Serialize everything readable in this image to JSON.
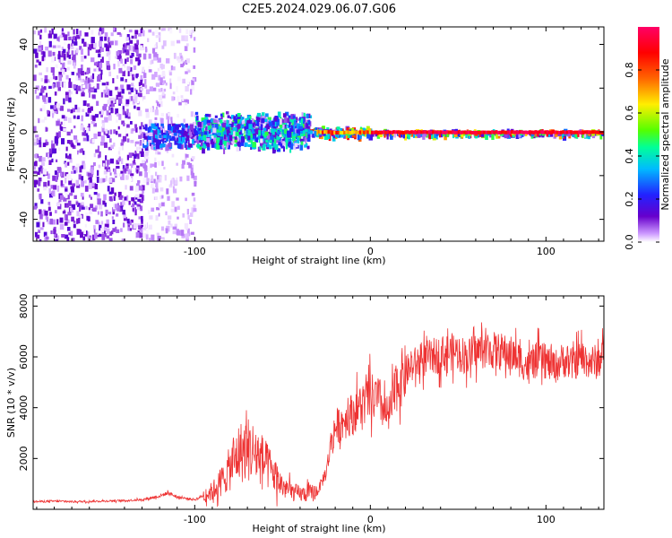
{
  "title": "C2E5.2024.029.06.07.G06",
  "chart_data": [
    {
      "type": "heatmap",
      "xlabel": "Height of straight line (km)",
      "ylabel": "Frequency (Hz)",
      "xlim": [
        -192,
        133
      ],
      "ylim": [
        -50,
        48
      ],
      "xticks": [
        -100,
        0,
        100
      ],
      "yticks": [
        -40,
        -20,
        0,
        20,
        40
      ],
      "colorbar": {
        "label": "Normalized spectral amplitude",
        "range": [
          0,
          1
        ],
        "ticks": [
          0.0,
          0.2,
          0.4,
          0.6,
          0.8
        ],
        "stops": [
          "#ffffff",
          "#cc99ff",
          "#6600cc",
          "#2222ff",
          "#00bbff",
          "#00ff99",
          "#55ff00",
          "#ffee00",
          "#ff6600",
          "#ff0000",
          "#ff0066"
        ]
      },
      "regions": [
        {
          "x0": -192,
          "x1": -130,
          "fmin": -50,
          "fmax": 48,
          "amp_max": 0.15
        },
        {
          "x0": -130,
          "x1": -100,
          "fmin": -50,
          "fmax": 48,
          "amp_max": 0.06
        },
        {
          "x0": -130,
          "x1": -100,
          "fmin": -6,
          "fmax": 4,
          "amp_max": 0.35
        },
        {
          "x0": -100,
          "x1": -35,
          "fmin": -8,
          "fmax": 10,
          "amp_max": 0.5
        },
        {
          "x0": -35,
          "x1": 0,
          "fmin": -2,
          "fmax": 3,
          "amp_max": 0.9
        },
        {
          "x0": 0,
          "x1": 133,
          "fmin": -1.5,
          "fmax": 1.5,
          "amp_max": 0.95
        }
      ]
    },
    {
      "type": "line",
      "xlabel": "Height of straight line (km)",
      "ylabel": "SNR (10 * v/v)",
      "xlim": [
        -192,
        133
      ],
      "ylim": [
        0,
        8400
      ],
      "xticks": [
        -100,
        0,
        100
      ],
      "yticks": [
        2000,
        4000,
        6000,
        8000
      ],
      "color": "#ee3333",
      "series": [
        {
          "x": [
            -192,
            -180,
            -170,
            -160,
            -150,
            -140,
            -130,
            -120,
            -115,
            -110,
            -100,
            -90,
            -85,
            -80,
            -75,
            -70,
            -65,
            -60,
            -55,
            -50,
            -45,
            -40,
            -35,
            -30,
            -25,
            -22,
            -20,
            -15,
            -10,
            -5,
            0,
            5,
            10,
            12,
            15,
            20,
            25,
            30,
            35,
            40,
            45,
            50,
            55,
            60,
            65,
            70,
            75,
            80,
            85,
            90,
            95,
            100,
            105,
            110,
            115,
            120,
            125,
            130,
            133
          ],
          "y": [
            300,
            320,
            300,
            310,
            330,
            340,
            380,
            520,
            650,
            480,
            380,
            700,
            1100,
            1600,
            2200,
            2400,
            2200,
            1800,
            1400,
            900,
            700,
            600,
            620,
            700,
            1500,
            2800,
            3200,
            3500,
            3800,
            4100,
            4400,
            4300,
            3600,
            4000,
            4900,
            5400,
            5700,
            5900,
            6000,
            6100,
            6200,
            6200,
            6000,
            6200,
            6300,
            6250,
            6200,
            6100,
            5900,
            5600,
            5900,
            5800,
            5600,
            5900,
            5700,
            6000,
            5800,
            5800,
            6300
          ]
        }
      ]
    }
  ]
}
